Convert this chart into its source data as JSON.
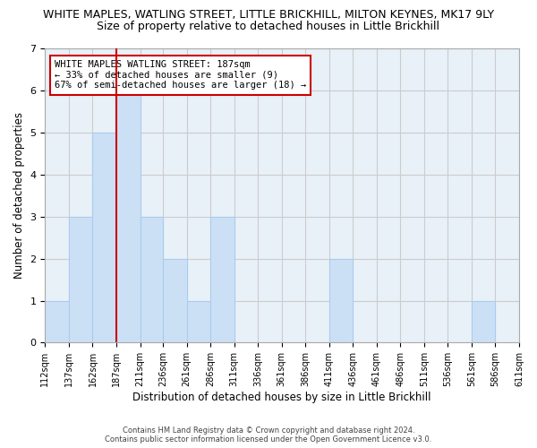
{
  "title_line1": "WHITE MAPLES, WATLING STREET, LITTLE BRICKHILL, MILTON KEYNES, MK17 9LY",
  "title_line2": "Size of property relative to detached houses in Little Brickhill",
  "xlabel": "Distribution of detached houses by size in Little Brickhill",
  "ylabel": "Number of detached properties",
  "bin_edges": [
    112,
    137,
    162,
    187,
    212,
    236,
    261,
    286,
    311,
    336,
    361,
    386,
    411,
    436,
    461,
    486,
    511,
    536,
    561,
    586,
    611
  ],
  "bar_heights": [
    1,
    3,
    5,
    6,
    3,
    2,
    1,
    3,
    0,
    0,
    0,
    0,
    2,
    0,
    0,
    0,
    0,
    0,
    1,
    0
  ],
  "bar_color": "#cce0f5",
  "bar_edge_color": "#aaccee",
  "red_line_x": 187,
  "annotation_text": "WHITE MAPLES WATLING STREET: 187sqm\n← 33% of detached houses are smaller (9)\n67% of semi-detached houses are larger (18) →",
  "annotation_box_color": "#ffffff",
  "annotation_box_edge_color": "#cc0000",
  "ylim": [
    0,
    7
  ],
  "yticks": [
    0,
    1,
    2,
    3,
    4,
    5,
    6,
    7
  ],
  "tick_labels": [
    "112sqm",
    "137sqm",
    "162sqm",
    "187sqm",
    "211sqm",
    "236sqm",
    "261sqm",
    "286sqm",
    "311sqm",
    "336sqm",
    "361sqm",
    "386sqm",
    "411sqm",
    "436sqm",
    "461sqm",
    "486sqm",
    "511sqm",
    "536sqm",
    "561sqm",
    "586sqm",
    "611sqm"
  ],
  "footer_line1": "Contains HM Land Registry data © Crown copyright and database right 2024.",
  "footer_line2": "Contains public sector information licensed under the Open Government Licence v3.0.",
  "background_color": "#ffffff",
  "grid_color": "#cccccc",
  "title_fontsize": 9,
  "subtitle_fontsize": 9,
  "axis_label_fontsize": 8.5,
  "tick_fontsize": 7,
  "annotation_fontsize": 7.5,
  "footer_fontsize": 6
}
